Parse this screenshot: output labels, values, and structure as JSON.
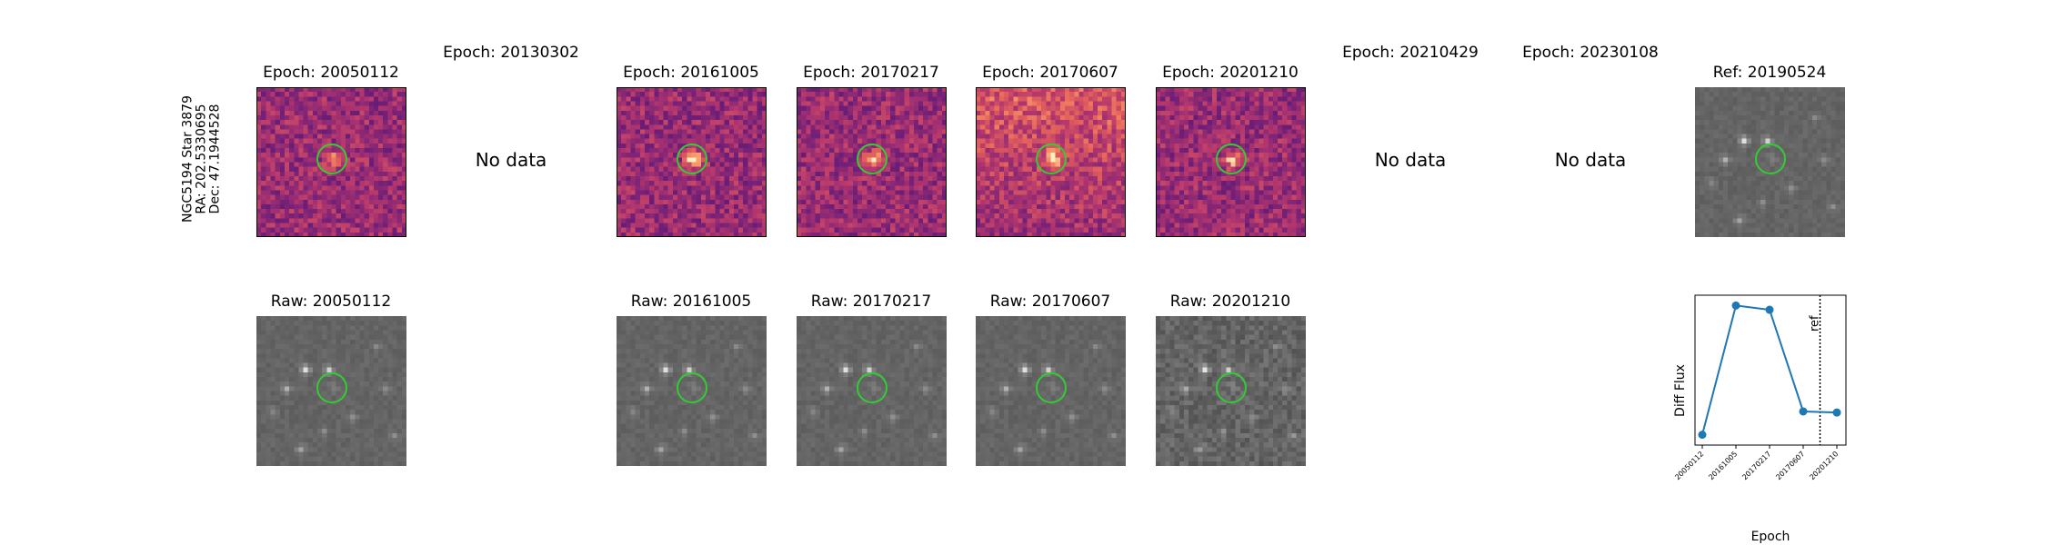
{
  "row_label": [
    "NGC5194 Star 3879",
    "RA: 202.5330695",
    "Dec: 47.1944528"
  ],
  "no_data_text": "No data",
  "columns": [
    {
      "diff_title": "Epoch: 20050112",
      "has_data": true,
      "raw_title": "Raw: 20050112"
    },
    {
      "diff_title": "Epoch: 20130302",
      "has_data": false,
      "raw_title": ""
    },
    {
      "diff_title": "Epoch: 20161005",
      "has_data": true,
      "raw_title": "Raw: 20161005"
    },
    {
      "diff_title": "Epoch: 20170217",
      "has_data": true,
      "raw_title": "Raw: 20170217"
    },
    {
      "diff_title": "Epoch: 20170607",
      "has_data": true,
      "raw_title": "Raw: 20170607"
    },
    {
      "diff_title": "Epoch: 20201210",
      "has_data": true,
      "raw_title": "Raw: 20201210"
    },
    {
      "diff_title": "Epoch: 20210429",
      "has_data": false,
      "raw_title": ""
    },
    {
      "diff_title": "Epoch: 20230108",
      "has_data": false,
      "raw_title": ""
    }
  ],
  "ref_title": "Ref: 20190524",
  "colors": {
    "circle": "#33cc33",
    "line": "#1f77b4"
  },
  "chart_data": {
    "type": "line",
    "categories": [
      "20050112",
      "20161005",
      "20170217",
      "20170607",
      "20201210"
    ],
    "values": [
      -0.5,
      5.6,
      5.4,
      0.6,
      0.55
    ],
    "xlabel": "Epoch",
    "ylabel": "Diff Flux",
    "ref_marker": {
      "label": "ref",
      "position": "between 20170607 and 20201210",
      "style": "dotted vertical line"
    },
    "grid": false
  }
}
